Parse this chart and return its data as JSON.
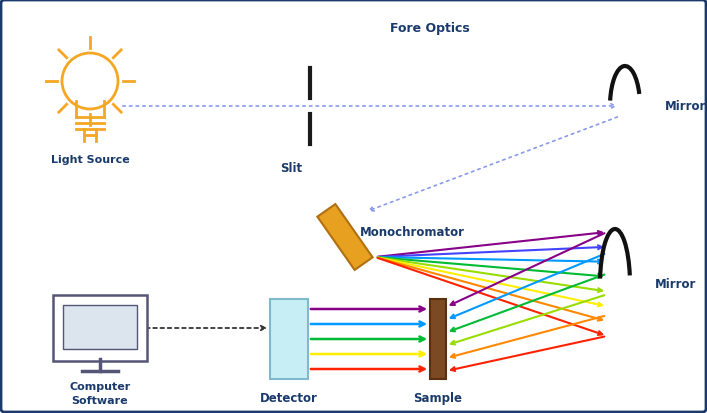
{
  "bg_color": "#ffffff",
  "border_color": "#1a3a6b",
  "label_color": "#1a3a6b",
  "bulb_color": "#f5a623",
  "mono_color": "#e8a020",
  "mono_edge": "#b07010",
  "slit_color": "#1a1a1a",
  "mirror_color": "#111111",
  "dot_color": "#8899ee",
  "comp_color": "#555577",
  "detector_color": "#c8eef5",
  "sample_color": "#7B4A22",
  "fore_optics_label": "Fore Optics",
  "light_source_label": "Light Source",
  "slit_label": "Slit",
  "mirror_top_label": "Mirror",
  "mirror_bot_label": "Mirror",
  "mono_label": "Monochromator",
  "detector_label": "Detector",
  "sample_label": "Sample",
  "computer_label": "Computer\nSoftware",
  "rainbow_out": [
    "#880088",
    "#4444ff",
    "#0099ff",
    "#00bb33",
    "#99dd00",
    "#ffee00",
    "#ff8800",
    "#ff2200"
  ],
  "rainbow_back": [
    "#880088",
    "#0099ff",
    "#00bb33",
    "#99dd00",
    "#ff8800",
    "#ff2200"
  ],
  "det_arrow_colors": [
    "#880088",
    "#0099ff",
    "#00bb33",
    "#ffee00",
    "#ff2200"
  ]
}
